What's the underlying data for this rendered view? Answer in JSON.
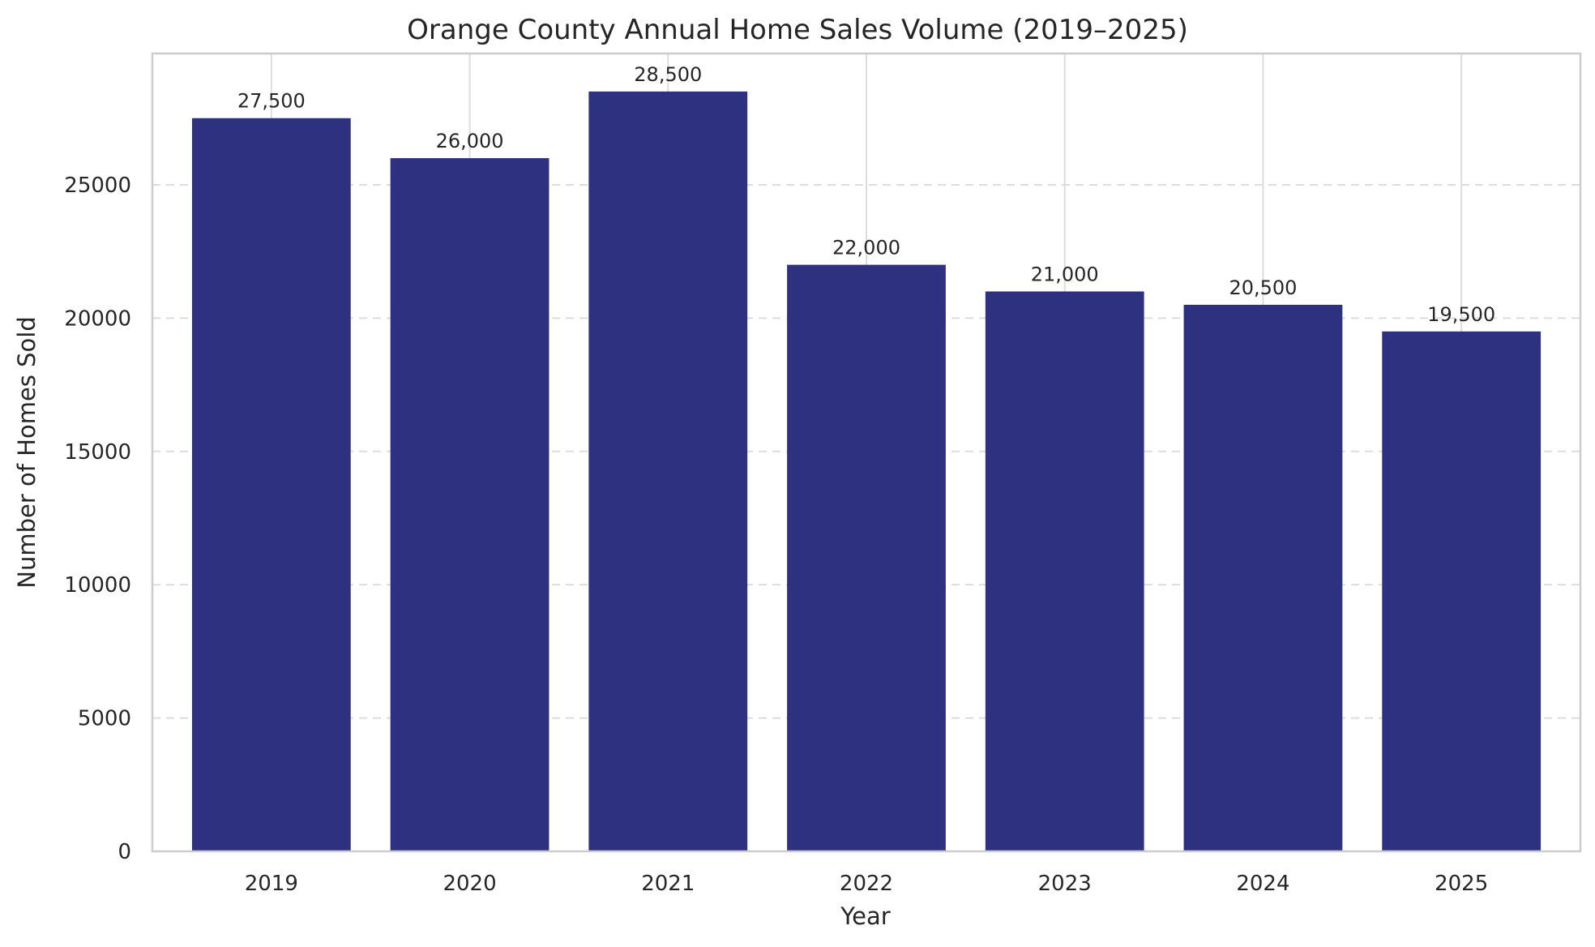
{
  "chart_data": {
    "type": "bar",
    "title": "Orange County Annual Home Sales Volume (2019–2025)",
    "xlabel": "Year",
    "ylabel": "Number of Homes Sold",
    "categories": [
      "2019",
      "2020",
      "2021",
      "2022",
      "2023",
      "2024",
      "2025"
    ],
    "values": [
      27500,
      26000,
      28500,
      22000,
      21000,
      20500,
      19500
    ],
    "value_labels": [
      "27,500",
      "26,000",
      "28,500",
      "22,000",
      "21,000",
      "20,500",
      "19,500"
    ],
    "ylim": [
      0,
      29925
    ],
    "yticks": [
      0,
      5000,
      10000,
      15000,
      20000,
      25000
    ],
    "ytick_labels": [
      "0",
      "5000",
      "10000",
      "15000",
      "20000",
      "25000"
    ],
    "grid": {
      "y": true,
      "y_style": "dashed",
      "x": true,
      "x_style": "solid"
    },
    "legend": "none",
    "colors": {
      "bar": "#2e3180",
      "grid": "#dddddd",
      "frame": "#cccccc",
      "text": "#262626"
    }
  }
}
